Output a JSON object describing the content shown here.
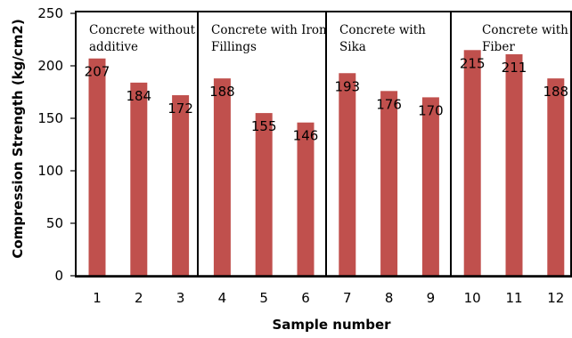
{
  "chart_data": {
    "type": "bar",
    "xlabel": "Sample number",
    "ylabel": "Compression Strength (kg/cm2)",
    "ylim": [
      0,
      250
    ],
    "yticks": [
      0,
      50,
      100,
      150,
      200,
      250
    ],
    "grid": false,
    "bar_color": "#c0504d",
    "categories": [
      "1",
      "2",
      "3",
      "4",
      "5",
      "6",
      "7",
      "8",
      "9",
      "10",
      "11",
      "12"
    ],
    "values": [
      207,
      184,
      172,
      188,
      155,
      146,
      193,
      176,
      170,
      215,
      211,
      188
    ],
    "data_labels": [
      "207",
      "184",
      "172",
      "188",
      "155",
      "146",
      "193",
      "176",
      "170",
      "215",
      "211",
      "188"
    ],
    "groups": [
      {
        "label_lines": [
          "Concrete without",
          "additive"
        ],
        "categories": [
          "1",
          "2",
          "3"
        ]
      },
      {
        "label_lines": [
          "Concrete with Iron",
          "Fillings"
        ],
        "categories": [
          "4",
          "5",
          "6"
        ]
      },
      {
        "label_lines": [
          "Concrete with",
          "Sika"
        ],
        "categories": [
          "7",
          "8",
          "9"
        ]
      },
      {
        "label_lines": [
          "Concrete with",
          "Fiber"
        ],
        "categories": [
          "10",
          "11",
          "12"
        ]
      }
    ]
  }
}
